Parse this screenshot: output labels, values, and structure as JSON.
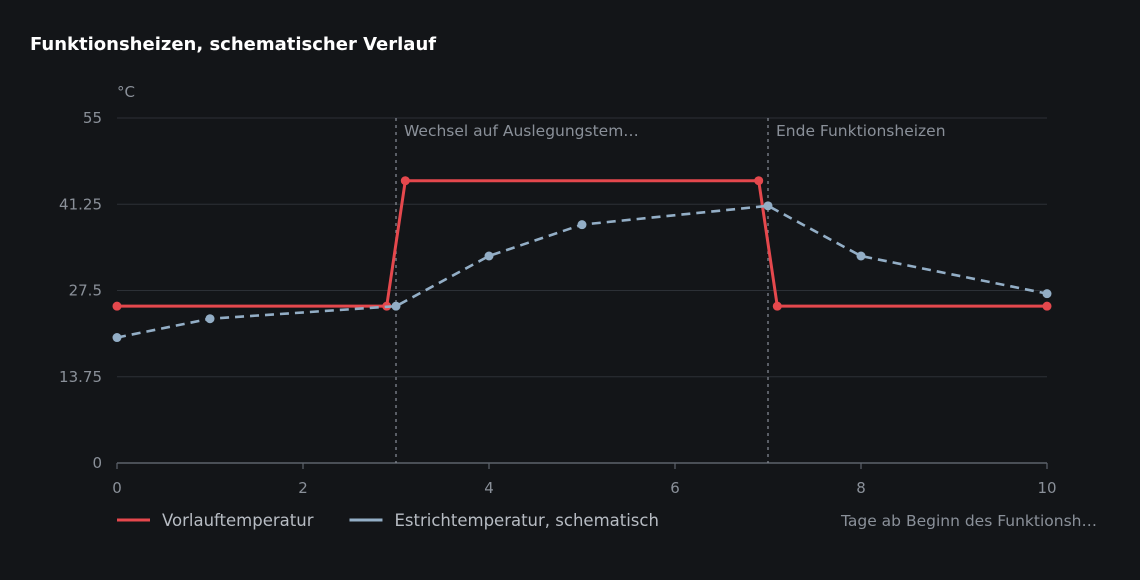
{
  "chart_data": {
    "type": "line",
    "title": "Funktionsheizen, schematischer Verlauf",
    "ylabel": "°C",
    "xlabel": "Tage ab Beginn des Funktionsh…",
    "xlim": [
      0,
      10
    ],
    "ylim": [
      0,
      55
    ],
    "x_ticks": [
      "0",
      "2",
      "4",
      "6",
      "8",
      "10"
    ],
    "y_ticks": [
      "0",
      "13.75",
      "27.5",
      "41.25",
      "55"
    ],
    "grid": true,
    "legend_position": "bottom-left",
    "series": [
      {
        "name": "Vorlauftemperatur",
        "color": "#e5484d",
        "style": "solid",
        "x": [
          0,
          2.9,
          3.1,
          6.9,
          7.1,
          10
        ],
        "y": [
          25,
          25,
          45,
          45,
          25,
          25
        ]
      },
      {
        "name": "Estrichtemperatur, schematisch",
        "color": "#93aec6",
        "style": "dashed",
        "x": [
          0,
          1,
          3,
          4,
          5,
          7,
          8,
          10
        ],
        "y": [
          20,
          23,
          25,
          33,
          38,
          41,
          33,
          27
        ]
      }
    ],
    "annotations": [
      {
        "x": 3,
        "label": "Wechsel auf Auslegungstem…"
      },
      {
        "x": 7,
        "label": "Ende Funktionsheizen"
      }
    ]
  },
  "colors": {
    "background": "#131518",
    "grid": "#2c3036",
    "axis": "#5d636b",
    "annotation_line": "#8a9099"
  }
}
